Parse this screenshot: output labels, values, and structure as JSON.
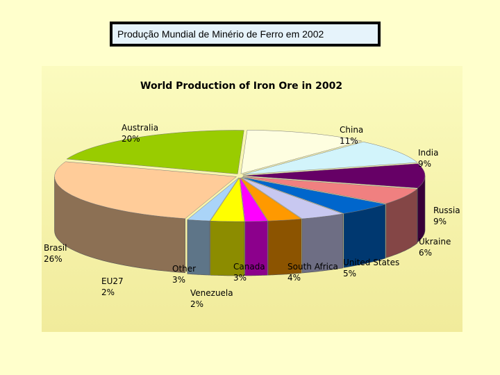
{
  "slide": {
    "header": "Produção Mundial de Minério de Ferro em 2002"
  },
  "chart_data": {
    "type": "pie",
    "title": "World Production of Iron Ore in 2002",
    "style": "3d-exploded",
    "slices": [
      {
        "label": "China",
        "percent": "11%",
        "value": 11,
        "color": "#fefee0"
      },
      {
        "label": "India",
        "percent": "9%",
        "value": 9,
        "color": "#d2f4fb"
      },
      {
        "label": "Russia",
        "percent": "9%",
        "value": 9,
        "color": "#660066"
      },
      {
        "label": "Ukraine",
        "percent": "6%",
        "value": 6,
        "color": "#f08080"
      },
      {
        "label": "United States",
        "percent": "5%",
        "value": 5,
        "color": "#0066cc"
      },
      {
        "label": "South Africa",
        "percent": "4%",
        "value": 4,
        "color": "#c8c8f0"
      },
      {
        "label": "Canada",
        "percent": "3%",
        "value": 3,
        "color": "#ff9900"
      },
      {
        "label": "Venezuela",
        "percent": "2%",
        "value": 2,
        "color": "#ff00ff"
      },
      {
        "label": "Other",
        "percent": "3%",
        "value": 3,
        "color": "#ffff00"
      },
      {
        "label": "EU27",
        "percent": "2%",
        "value": 2,
        "color": "#aad4f8"
      },
      {
        "label": "Brasil",
        "percent": "26%",
        "value": 26,
        "color": "#ffcc99"
      },
      {
        "label": "Australia",
        "percent": "20%",
        "value": 20,
        "color": "#99cc00"
      }
    ]
  }
}
